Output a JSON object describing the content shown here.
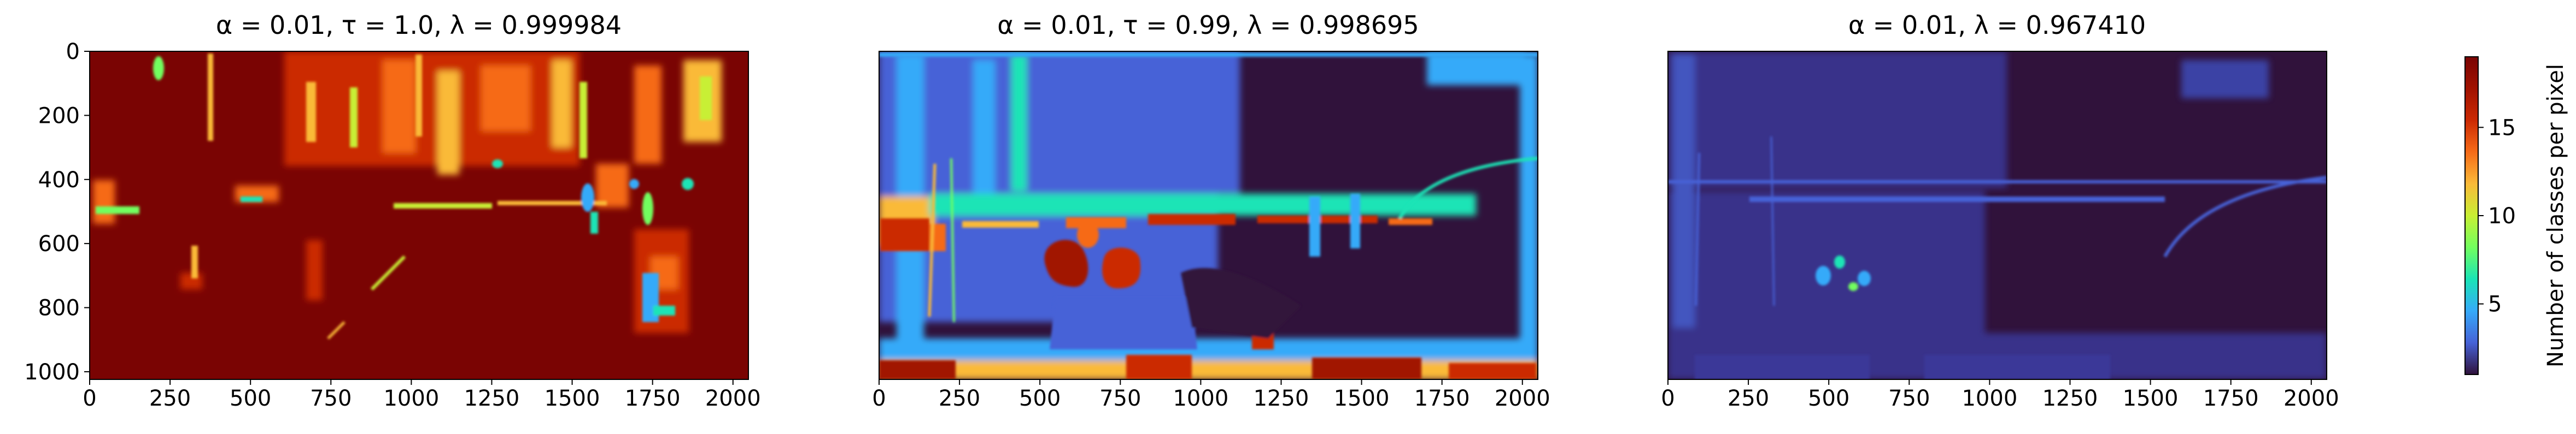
{
  "figure": {
    "colormap": "turbo",
    "colors": {
      "low": "#30123b",
      "blue": "#4662d7",
      "cyan": "#1ae4b6",
      "green": "#72fe5e",
      "yellow": "#f0cc3a",
      "orange": "#f66b18",
      "high": "#7a0403"
    }
  },
  "chart_data": [
    {
      "type": "heatmap",
      "title": "α = 0.01, τ = 1.0, λ =  0.999984",
      "xlim": [
        0,
        2048
      ],
      "ylim": [
        1024,
        0
      ],
      "xticks": [
        0,
        250,
        500,
        750,
        1000,
        1250,
        1500,
        1750,
        2000
      ],
      "yticks": [
        0,
        200,
        400,
        600,
        800,
        1000
      ],
      "show_yticks": true,
      "dominant_value": 19,
      "background_level": 0.97
    },
    {
      "type": "heatmap",
      "title": "α = 0.01, τ = 0.99, λ =  0.998695",
      "xlim": [
        0,
        2048
      ],
      "ylim": [
        1024,
        0
      ],
      "xticks": [
        0,
        250,
        500,
        750,
        1000,
        1250,
        1500,
        1750,
        2000
      ],
      "yticks": [],
      "show_yticks": false,
      "dominant_value": 3,
      "background_level": 0.08
    },
    {
      "type": "heatmap",
      "title": "α = 0.01, λ =  0.967410",
      "xlim": [
        0,
        2048
      ],
      "ylim": [
        1024,
        0
      ],
      "xticks": [
        0,
        250,
        500,
        750,
        1000,
        1250,
        1500,
        1750,
        2000
      ],
      "yticks": [],
      "show_yticks": false,
      "dominant_value": 1,
      "background_level": 0.05
    }
  ],
  "colorbar": {
    "label": "Number of classes per pixel",
    "range": [
      1,
      19
    ],
    "ticks": [
      5,
      10,
      15
    ]
  }
}
